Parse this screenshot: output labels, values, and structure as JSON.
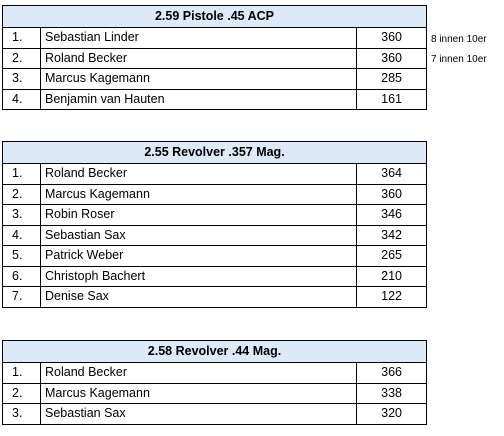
{
  "tables": [
    {
      "title": "2.59 Pistole .45 ACP",
      "rows": [
        {
          "rank": "1.",
          "name": "Sebastian Linder",
          "score": "360"
        },
        {
          "rank": "2.",
          "name": "Roland Becker",
          "score": "360"
        },
        {
          "rank": "3.",
          "name": "Marcus Kagemann",
          "score": "285"
        },
        {
          "rank": "4.",
          "name": "Benjamin van Hauten",
          "score": "161"
        }
      ],
      "notes": [
        "8 innen 10er",
        "7 innen 10er"
      ]
    },
    {
      "title": "2.55 Revolver .357 Mag.",
      "rows": [
        {
          "rank": "1.",
          "name": "Roland Becker",
          "score": "364"
        },
        {
          "rank": "2.",
          "name": "Marcus Kagemann",
          "score": "360"
        },
        {
          "rank": "3.",
          "name": "Robin Roser",
          "score": "346"
        },
        {
          "rank": "4.",
          "name": "Sebastian Sax",
          "score": "342"
        },
        {
          "rank": "5.",
          "name": "Patrick Weber",
          "score": "265"
        },
        {
          "rank": "6.",
          "name": "Christoph Bachert",
          "score": "210"
        },
        {
          "rank": "7.",
          "name": "Denise Sax",
          "score": "122"
        }
      ]
    },
    {
      "title": "2.58 Revolver .44 Mag.",
      "rows": [
        {
          "rank": "1.",
          "name": "Roland Becker",
          "score": "366"
        },
        {
          "rank": "2.",
          "name": "Marcus Kagemann",
          "score": "338"
        },
        {
          "rank": "3.",
          "name": "Sebastian Sax",
          "score": "320"
        }
      ]
    }
  ]
}
